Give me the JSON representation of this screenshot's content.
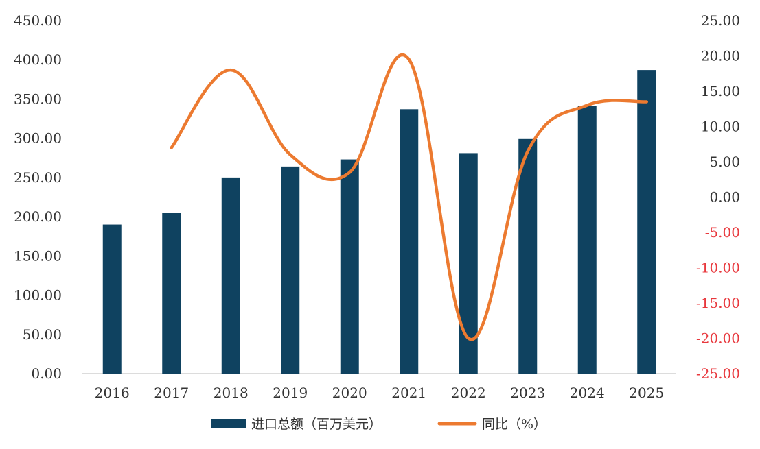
{
  "chart_data": {
    "type": "bar",
    "title": "",
    "xlabel": "",
    "categories": [
      "2016",
      "2017",
      "2018",
      "2019",
      "2020",
      "2021",
      "2022",
      "2023",
      "2024",
      "2025"
    ],
    "series": [
      {
        "name": "进口总额（百万美元）",
        "type": "bar",
        "axis": "left",
        "values": [
          190,
          205,
          250,
          264,
          273,
          337,
          281,
          299,
          341,
          387
        ]
      },
      {
        "name": "同比（%）",
        "type": "line",
        "axis": "right",
        "x": [
          "2017",
          "2018",
          "2019",
          "2020",
          "2021",
          "2022",
          "2023",
          "2024",
          "2025"
        ],
        "values": [
          7.0,
          18.0,
          6.0,
          3.5,
          19.5,
          -20.0,
          6.5,
          13.0,
          13.5
        ]
      }
    ],
    "y_left": {
      "ylim": [
        0,
        450
      ],
      "ticks": [
        "0.00",
        "50.00",
        "100.00",
        "150.00",
        "200.00",
        "250.00",
        "300.00",
        "350.00",
        "400.00",
        "450.00"
      ]
    },
    "y_right": {
      "ylim": [
        -25,
        25
      ],
      "ticks": [
        "-25.00",
        "-20.00",
        "-15.00",
        "-10.00",
        "-5.00",
        "0.00",
        "5.00",
        "10.00",
        "15.00",
        "20.00",
        "25.00"
      ],
      "negative_tick_color": "#e8383d"
    },
    "grid": false,
    "legend_position": "bottom",
    "colors": {
      "bar": "#0f4260",
      "line": "#ec7a30",
      "tick_text": "#333333",
      "axis_line": "#d0d0d0"
    }
  }
}
